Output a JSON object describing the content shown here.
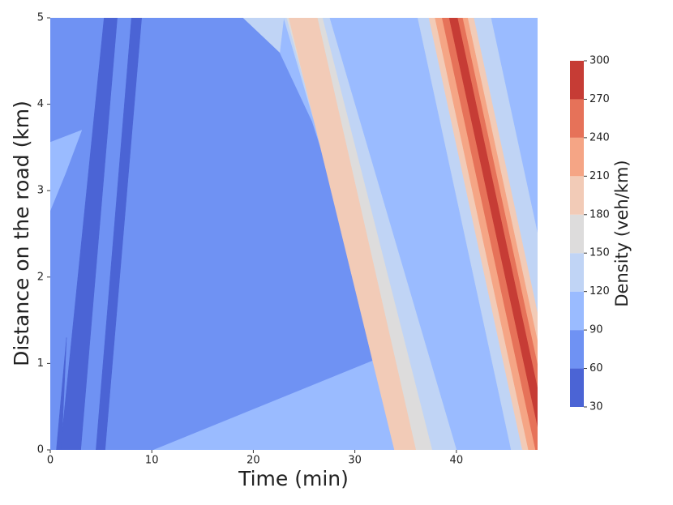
{
  "chart_data": {
    "type": "contour",
    "xlabel": "Time (min)",
    "ylabel": "Distance on the road (km)",
    "xlim": [
      0,
      48
    ],
    "xticks": [
      0,
      10,
      20,
      30,
      40
    ],
    "ylim": [
      0,
      5
    ],
    "yticks": [
      0,
      1,
      2,
      3,
      4,
      5
    ],
    "colorbar": {
      "label": "Density (veh/km)",
      "levels": [
        30,
        60,
        90,
        120,
        150,
        180,
        210,
        240,
        270,
        300
      ],
      "colors": [
        "#4b64d5",
        "#6f92f3",
        "#9abbff",
        "#c0d4f5",
        "#dddcdc",
        "#f2cbb7",
        "#f5a585",
        "#e67259",
        "#c63c35"
      ]
    },
    "regions": [
      {
        "level": 60,
        "points": [
          [
            0,
            0
          ],
          [
            48,
            0
          ],
          [
            48,
            5
          ],
          [
            0,
            5
          ]
        ]
      },
      {
        "level": 90,
        "points": [
          [
            10.2,
            0
          ],
          [
            48,
            0
          ],
          [
            48,
            5
          ],
          [
            19.5,
            5
          ],
          [
            22.6,
            4.6
          ],
          [
            25.8,
            3.8
          ],
          [
            33.2,
            1.1
          ]
        ]
      },
      {
        "level": 90,
        "points": [
          [
            0,
            3.56
          ],
          [
            3.1,
            3.7
          ],
          [
            1.5,
            3.2
          ],
          [
            0,
            2.77
          ]
        ]
      },
      {
        "level": 120,
        "points": [
          [
            19,
            5
          ],
          [
            23,
            5
          ],
          [
            22.6,
            4.6
          ]
        ]
      },
      {
        "level": 30,
        "points": [
          [
            5.3,
            5
          ],
          [
            6.6,
            5
          ],
          [
            3.0,
            0
          ],
          [
            1.0,
            0
          ]
        ]
      },
      {
        "level": 30,
        "points": [
          [
            8.0,
            5
          ],
          [
            9.0,
            5
          ],
          [
            5.4,
            0
          ],
          [
            4.5,
            0
          ]
        ]
      },
      {
        "level": 30,
        "points": [
          [
            0.6,
            0
          ],
          [
            1.1,
            0
          ],
          [
            1.6,
            1.3
          ]
        ]
      },
      {
        "level": 120,
        "points": [
          [
            23.0,
            5
          ],
          [
            27.5,
            5
          ],
          [
            40.0,
            0
          ],
          [
            35.5,
            0
          ]
        ]
      },
      {
        "level": 150,
        "points": [
          [
            23.3,
            5
          ],
          [
            26.8,
            5
          ],
          [
            37.6,
            0
          ],
          [
            35.0,
            0
          ]
        ]
      },
      {
        "level": 180,
        "points": [
          [
            23.5,
            5
          ],
          [
            26.3,
            5
          ],
          [
            36.0,
            0
          ],
          [
            33.9,
            0
          ]
        ]
      },
      {
        "level": 120,
        "points": [
          [
            36.2,
            5
          ],
          [
            43.4,
            5
          ],
          [
            52.6,
            0
          ],
          [
            45.4,
            0
          ]
        ]
      },
      {
        "level": 180,
        "points": [
          [
            37.3,
            5
          ],
          [
            41.7,
            5
          ],
          [
            50.9,
            0
          ],
          [
            46.5,
            0
          ]
        ]
      },
      {
        "level": 210,
        "points": [
          [
            37.9,
            5
          ],
          [
            41.1,
            5
          ],
          [
            50.3,
            0
          ],
          [
            47.1,
            0
          ]
        ]
      },
      {
        "level": 240,
        "points": [
          [
            38.6,
            5
          ],
          [
            40.6,
            5
          ],
          [
            49.8,
            0
          ],
          [
            47.8,
            0
          ]
        ]
      },
      {
        "level": 270,
        "points": [
          [
            39.3,
            5
          ],
          [
            40.1,
            5
          ],
          [
            49.3,
            0
          ],
          [
            48.5,
            0
          ]
        ]
      }
    ]
  }
}
